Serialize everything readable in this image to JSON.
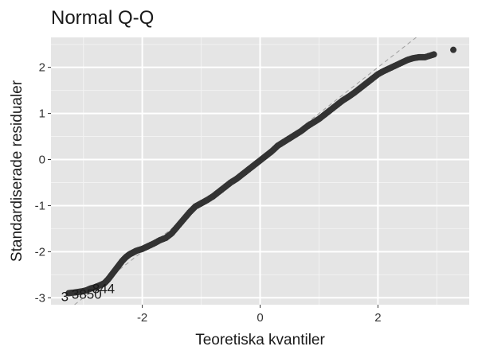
{
  "chart_data": {
    "type": "scatter",
    "title": "Normal Q-Q",
    "xlabel": "Teoretiska kvantiler",
    "ylabel": "Standardiserade residualer",
    "xlim": [
      -3.55,
      3.55
    ],
    "ylim": [
      -3.15,
      2.65
    ],
    "x_ticks": [
      -2,
      0,
      2
    ],
    "x_tick_labels": [
      "-2",
      "0",
      "2"
    ],
    "y_ticks": [
      -3,
      -2,
      -1,
      0,
      1,
      2
    ],
    "y_tick_labels": [
      "-3",
      "-2",
      "-1",
      "0",
      "1",
      "2"
    ],
    "grid": true,
    "reference_line": {
      "style": "dashed",
      "color": "#9e9e9e",
      "slope": 1,
      "intercept": 0
    },
    "point_color": "#333333",
    "panel_background": "#e5e5e5",
    "series": [
      {
        "points": [
          [
            -3.25,
            -2.9
          ],
          [
            -3.12,
            -2.88
          ],
          [
            -3.02,
            -2.86
          ],
          [
            -2.95,
            -2.84
          ],
          [
            -2.88,
            -2.8
          ],
          [
            -2.82,
            -2.78
          ],
          [
            -2.76,
            -2.75
          ],
          [
            -2.7,
            -2.72
          ],
          [
            -2.64,
            -2.68
          ],
          [
            -2.58,
            -2.6
          ],
          [
            -2.52,
            -2.5
          ],
          [
            -2.46,
            -2.4
          ],
          [
            -2.4,
            -2.3
          ],
          [
            -2.34,
            -2.2
          ],
          [
            -2.28,
            -2.12
          ],
          [
            -2.22,
            -2.06
          ],
          [
            -2.16,
            -2.02
          ],
          [
            -2.1,
            -1.98
          ],
          [
            -2.0,
            -1.94
          ],
          [
            -1.9,
            -1.88
          ],
          [
            -1.8,
            -1.82
          ],
          [
            -1.7,
            -1.75
          ],
          [
            -1.6,
            -1.7
          ],
          [
            -1.5,
            -1.6
          ],
          [
            -1.4,
            -1.45
          ],
          [
            -1.3,
            -1.3
          ],
          [
            -1.2,
            -1.15
          ],
          [
            -1.1,
            -1.02
          ],
          [
            -1.0,
            -0.95
          ],
          [
            -0.9,
            -0.88
          ],
          [
            -0.8,
            -0.8
          ],
          [
            -0.7,
            -0.7
          ],
          [
            -0.6,
            -0.6
          ],
          [
            -0.5,
            -0.5
          ],
          [
            -0.4,
            -0.42
          ],
          [
            -0.3,
            -0.32
          ],
          [
            -0.2,
            -0.22
          ],
          [
            -0.1,
            -0.12
          ],
          [
            0.0,
            -0.02
          ],
          [
            0.1,
            0.08
          ],
          [
            0.2,
            0.18
          ],
          [
            0.3,
            0.3
          ],
          [
            0.4,
            0.38
          ],
          [
            0.5,
            0.46
          ],
          [
            0.6,
            0.54
          ],
          [
            0.7,
            0.62
          ],
          [
            0.8,
            0.72
          ],
          [
            0.9,
            0.8
          ],
          [
            1.0,
            0.88
          ],
          [
            1.1,
            0.98
          ],
          [
            1.2,
            1.08
          ],
          [
            1.3,
            1.18
          ],
          [
            1.4,
            1.28
          ],
          [
            1.5,
            1.36
          ],
          [
            1.6,
            1.45
          ],
          [
            1.7,
            1.55
          ],
          [
            1.8,
            1.65
          ],
          [
            1.9,
            1.75
          ],
          [
            2.0,
            1.85
          ],
          [
            2.1,
            1.92
          ],
          [
            2.2,
            1.98
          ],
          [
            2.3,
            2.04
          ],
          [
            2.4,
            2.1
          ],
          [
            2.5,
            2.16
          ],
          [
            2.6,
            2.2
          ],
          [
            2.7,
            2.22
          ],
          [
            2.8,
            2.22
          ],
          [
            2.95,
            2.28
          ],
          [
            3.28,
            2.38
          ]
        ]
      }
    ],
    "annotations": [
      {
        "text": "3",
        "x": -3.38,
        "y": -2.97
      },
      {
        "text": "3850",
        "x": -3.2,
        "y": -2.92
      },
      {
        "text": "844",
        "x": -2.85,
        "y": -2.8
      }
    ]
  }
}
